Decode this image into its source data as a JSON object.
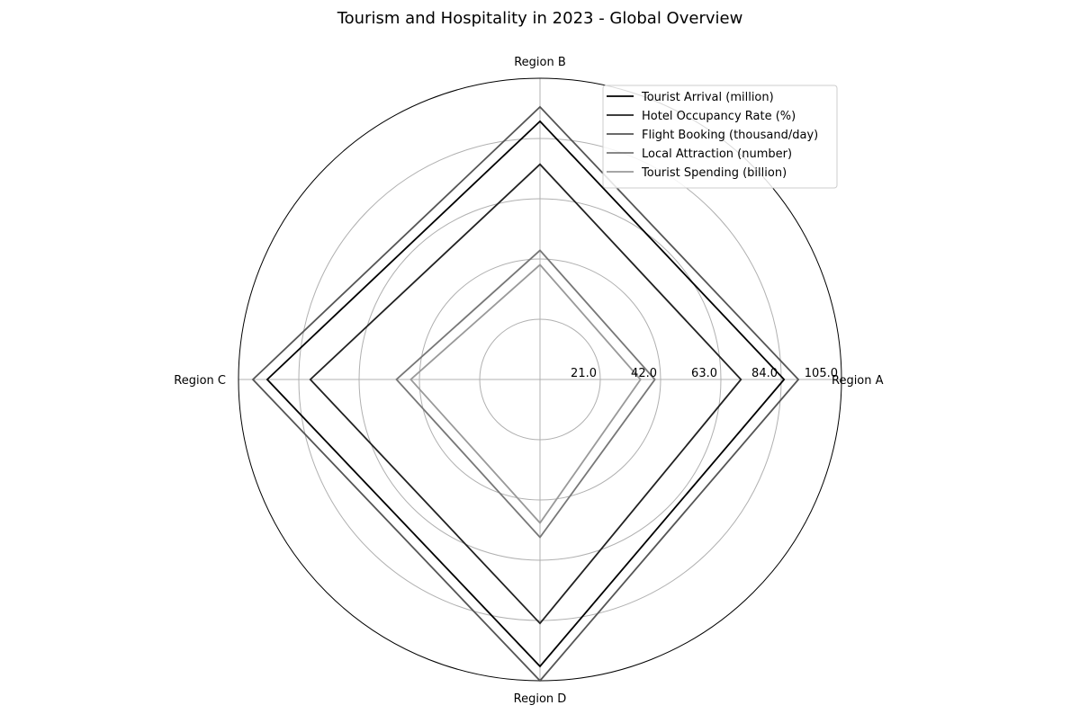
{
  "chart_data": {
    "type": "radar",
    "title": "Tourism and Hospitality in 2023 - Global Overview",
    "categories": [
      "Region A",
      "Region B",
      "Region C",
      "Region D"
    ],
    "radial_ticks": [
      "21.0",
      "42.0",
      "63.0",
      "84.0",
      "105.0"
    ],
    "rmax": 105,
    "grid": true,
    "legend_position": "top-right",
    "series": [
      {
        "name": "Tourist Arrival (million)",
        "values": [
          85,
          90,
          95,
          100
        ],
        "color": "#000000"
      },
      {
        "name": "Hotel Occupancy Rate (%)",
        "values": [
          70,
          75,
          80,
          85
        ],
        "color": "#222222"
      },
      {
        "name": "Flight Booking (thousand/day)",
        "values": [
          90,
          95,
          100,
          105
        ],
        "color": "#555555"
      },
      {
        "name": "Local Attraction (number)",
        "values": [
          40,
          45,
          50,
          55
        ],
        "color": "#777777"
      },
      {
        "name": "Tourist Spending (billion)",
        "values": [
          35,
          40,
          45,
          50
        ],
        "color": "#999999"
      }
    ]
  }
}
